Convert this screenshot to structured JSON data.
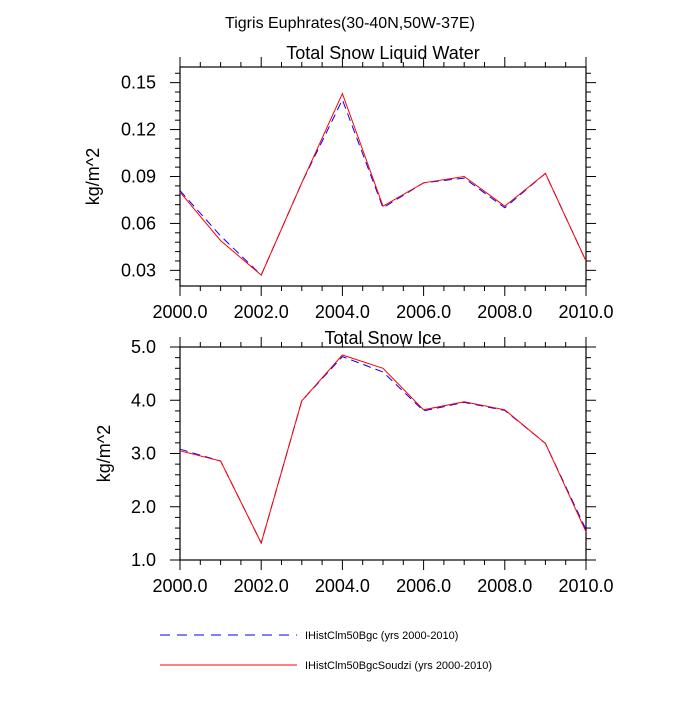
{
  "figure_title": "Tigris Euphrates(30-40N,50W-37E)",
  "chart_data": [
    {
      "type": "line",
      "title": "Total Snow Liquid Water",
      "xlabel": "",
      "ylabel": "kg/m^2",
      "x": [
        2000,
        2001,
        2002,
        2003,
        2004,
        2005,
        2006,
        2007,
        2008,
        2009,
        2010
      ],
      "xlim": [
        2000,
        2010
      ],
      "ylim": [
        0.02,
        0.16
      ],
      "xticks": [
        2000,
        2002,
        2004,
        2006,
        2008,
        2010
      ],
      "xtick_labels": [
        "2000.0",
        "2002.0",
        "2004.0",
        "2006.0",
        "2008.0",
        "2010.0"
      ],
      "yticks": [
        0.03,
        0.06,
        0.09,
        0.12,
        0.15
      ],
      "ytick_labels": [
        "0.03",
        "0.06",
        "0.09",
        "0.12",
        "0.15"
      ],
      "grid": false,
      "series": [
        {
          "name": "IHistClm50Bgc (yrs 2000-2010)",
          "color": "#0000ff",
          "dashed": true,
          "values": [
            0.081,
            0.052,
            0.027,
            0.086,
            0.139,
            0.07,
            0.086,
            0.089,
            0.07,
            0.092,
            0.036
          ]
        },
        {
          "name": "IHistClm50BgcSoudzi (yrs 2000-2010)",
          "color": "#ff0000",
          "dashed": false,
          "values": [
            0.08,
            0.049,
            0.027,
            0.086,
            0.143,
            0.071,
            0.086,
            0.09,
            0.071,
            0.092,
            0.036
          ]
        }
      ]
    },
    {
      "type": "line",
      "title": "Total Snow Ice",
      "xlabel": "",
      "ylabel": "kg/m^2",
      "x": [
        2000,
        2001,
        2002,
        2003,
        2004,
        2005,
        2006,
        2007,
        2008,
        2009,
        2010
      ],
      "xlim": [
        2000,
        2010
      ],
      "ylim": [
        1.0,
        5.0
      ],
      "xticks": [
        2000,
        2002,
        2004,
        2006,
        2008,
        2010
      ],
      "xtick_labels": [
        "2000.0",
        "2002.0",
        "2004.0",
        "2006.0",
        "2008.0",
        "2010.0"
      ],
      "yticks": [
        1.0,
        2.0,
        3.0,
        4.0,
        5.0
      ],
      "ytick_labels": [
        "1.0",
        "2.0",
        "3.0",
        "4.0",
        "5.0"
      ],
      "grid": false,
      "series": [
        {
          "name": "IHistClm50Bgc (yrs 2000-2010)",
          "color": "#0000ff",
          "dashed": true,
          "values": [
            3.08,
            2.86,
            1.32,
            3.99,
            4.82,
            4.53,
            3.8,
            3.96,
            3.81,
            3.19,
            1.57
          ]
        },
        {
          "name": "IHistClm50BgcSoudzi (yrs 2000-2010)",
          "color": "#ff0000",
          "dashed": false,
          "values": [
            3.05,
            2.86,
            1.32,
            3.99,
            4.85,
            4.6,
            3.82,
            3.97,
            3.82,
            3.19,
            1.53
          ]
        }
      ]
    }
  ],
  "legend": {
    "position": "bottom",
    "entries": [
      {
        "label": "IHistClm50Bgc (yrs 2000-2010)",
        "color": "#0000ff",
        "dashed": true
      },
      {
        "label": "IHistClm50BgcSoudzi (yrs 2000-2010)",
        "color": "#ff0000",
        "dashed": false
      }
    ]
  }
}
